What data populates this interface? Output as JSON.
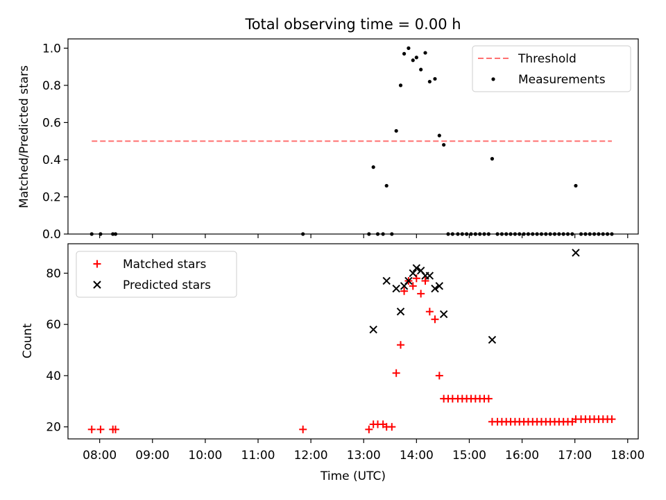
{
  "chart_data": [
    {
      "type": "scatter",
      "title": "Total observing time = 0.00 h",
      "xlabel": "",
      "ylabel": "Matched/Predicted stars",
      "ylim": [
        0,
        1.05
      ],
      "xlim": [
        "07:24",
        "18:12"
      ],
      "yticks": [
        "0.0",
        "0.2",
        "0.4",
        "0.6",
        "0.8",
        "1.0"
      ],
      "legend": {
        "placement": "top-right",
        "entries": [
          "Threshold",
          "Measurements"
        ]
      },
      "threshold": {
        "name": "Threshold",
        "y": 0.5,
        "x_start": "07:51",
        "x_end": "17:42",
        "color": "#ff7070",
        "style": "dashed"
      },
      "series": [
        {
          "name": "Measurements",
          "marker": "dot",
          "color": "#000000",
          "points": [
            [
              "07:51",
              0
            ],
            [
              "08:01",
              0
            ],
            [
              "08:15",
              0
            ],
            [
              "08:18",
              0
            ],
            [
              "11:51",
              0
            ],
            [
              "13:06",
              0
            ],
            [
              "13:11",
              0.36
            ],
            [
              "13:16",
              0
            ],
            [
              "13:22",
              0
            ],
            [
              "13:26",
              0.26
            ],
            [
              "13:32",
              0
            ],
            [
              "13:37",
              0.555
            ],
            [
              "13:42",
              0.8
            ],
            [
              "13:46",
              0.97
            ],
            [
              "13:51",
              1.0
            ],
            [
              "13:56",
              0.935
            ],
            [
              "14:00",
              0.95
            ],
            [
              "14:05",
              0.885
            ],
            [
              "14:10",
              0.975
            ],
            [
              "14:15",
              0.82
            ],
            [
              "14:21",
              0.835
            ],
            [
              "14:26",
              0.53
            ],
            [
              "14:31",
              0.48
            ],
            [
              "14:36",
              0
            ],
            [
              "14:41",
              0
            ],
            [
              "14:47",
              0
            ],
            [
              "14:52",
              0
            ],
            [
              "14:57",
              0
            ],
            [
              "15:02",
              0
            ],
            [
              "15:07",
              0
            ],
            [
              "15:12",
              0
            ],
            [
              "15:17",
              0
            ],
            [
              "15:22",
              0
            ],
            [
              "15:26",
              0.405
            ],
            [
              "15:32",
              0
            ],
            [
              "15:37",
              0
            ],
            [
              "15:42",
              0
            ],
            [
              "15:47",
              0
            ],
            [
              "15:52",
              0
            ],
            [
              "15:57",
              0
            ],
            [
              "16:02",
              0
            ],
            [
              "16:07",
              0
            ],
            [
              "16:12",
              0
            ],
            [
              "16:17",
              0
            ],
            [
              "16:22",
              0
            ],
            [
              "16:27",
              0
            ],
            [
              "16:32",
              0
            ],
            [
              "16:37",
              0
            ],
            [
              "16:42",
              0
            ],
            [
              "16:47",
              0
            ],
            [
              "16:52",
              0
            ],
            [
              "16:57",
              0
            ],
            [
              "17:01",
              0.26
            ],
            [
              "17:07",
              0
            ],
            [
              "17:12",
              0
            ],
            [
              "17:17",
              0
            ],
            [
              "17:22",
              0
            ],
            [
              "17:27",
              0
            ],
            [
              "17:32",
              0
            ],
            [
              "17:37",
              0
            ],
            [
              "17:42",
              0
            ]
          ]
        }
      ]
    },
    {
      "type": "scatter",
      "title": "",
      "xlabel": "Time (UTC)",
      "ylabel": "Count",
      "ylim": [
        15.3,
        91.5
      ],
      "xlim": [
        "07:24",
        "18:12"
      ],
      "yticks": [
        "20",
        "40",
        "60",
        "80"
      ],
      "xticks": [
        "08:00",
        "09:00",
        "10:00",
        "11:00",
        "12:00",
        "13:00",
        "14:00",
        "15:00",
        "16:00",
        "17:00",
        "18:00"
      ],
      "legend": {
        "placement": "top-left",
        "entries": [
          "Matched stars",
          "Predicted stars"
        ]
      },
      "series": [
        {
          "name": "Matched stars",
          "marker": "plus",
          "color": "#ff0000",
          "points": [
            [
              "07:51",
              19
            ],
            [
              "08:01",
              19
            ],
            [
              "08:15",
              19
            ],
            [
              "08:18",
              19
            ],
            [
              "11:51",
              19
            ],
            [
              "13:06",
              19
            ],
            [
              "13:11",
              21
            ],
            [
              "13:16",
              21
            ],
            [
              "13:22",
              21
            ],
            [
              "13:26",
              20
            ],
            [
              "13:32",
              20
            ],
            [
              "13:37",
              41
            ],
            [
              "13:42",
              52
            ],
            [
              "13:46",
              73
            ],
            [
              "13:51",
              77
            ],
            [
              "13:56",
              75
            ],
            [
              "14:00",
              78
            ],
            [
              "14:05",
              72
            ],
            [
              "14:10",
              77
            ],
            [
              "14:15",
              65
            ],
            [
              "14:21",
              62
            ],
            [
              "14:26",
              40
            ],
            [
              "14:31",
              31
            ],
            [
              "14:36",
              31
            ],
            [
              "14:41",
              31
            ],
            [
              "14:47",
              31
            ],
            [
              "14:52",
              31
            ],
            [
              "14:57",
              31
            ],
            [
              "15:02",
              31
            ],
            [
              "15:07",
              31
            ],
            [
              "15:12",
              31
            ],
            [
              "15:17",
              31
            ],
            [
              "15:22",
              31
            ],
            [
              "15:26",
              22
            ],
            [
              "15:32",
              22
            ],
            [
              "15:37",
              22
            ],
            [
              "15:42",
              22
            ],
            [
              "15:47",
              22
            ],
            [
              "15:52",
              22
            ],
            [
              "15:57",
              22
            ],
            [
              "16:02",
              22
            ],
            [
              "16:07",
              22
            ],
            [
              "16:12",
              22
            ],
            [
              "16:17",
              22
            ],
            [
              "16:22",
              22
            ],
            [
              "16:27",
              22
            ],
            [
              "16:32",
              22
            ],
            [
              "16:37",
              22
            ],
            [
              "16:42",
              22
            ],
            [
              "16:47",
              22
            ],
            [
              "16:52",
              22
            ],
            [
              "16:57",
              22
            ],
            [
              "17:01",
              23
            ],
            [
              "17:07",
              23
            ],
            [
              "17:12",
              23
            ],
            [
              "17:17",
              23
            ],
            [
              "17:22",
              23
            ],
            [
              "17:27",
              23
            ],
            [
              "17:32",
              23
            ],
            [
              "17:37",
              23
            ],
            [
              "17:42",
              23
            ]
          ]
        },
        {
          "name": "Predicted stars",
          "marker": "x",
          "color": "#000000",
          "points": [
            [
              "13:11",
              58
            ],
            [
              "13:26",
              77
            ],
            [
              "13:37",
              74
            ],
            [
              "13:42",
              65
            ],
            [
              "13:46",
              75
            ],
            [
              "13:51",
              77
            ],
            [
              "13:56",
              80
            ],
            [
              "14:00",
              82
            ],
            [
              "14:05",
              81
            ],
            [
              "14:10",
              79
            ],
            [
              "14:15",
              79
            ],
            [
              "14:21",
              74
            ],
            [
              "14:26",
              75
            ],
            [
              "14:31",
              64
            ],
            [
              "15:26",
              54
            ],
            [
              "17:01",
              88
            ]
          ]
        }
      ]
    }
  ]
}
